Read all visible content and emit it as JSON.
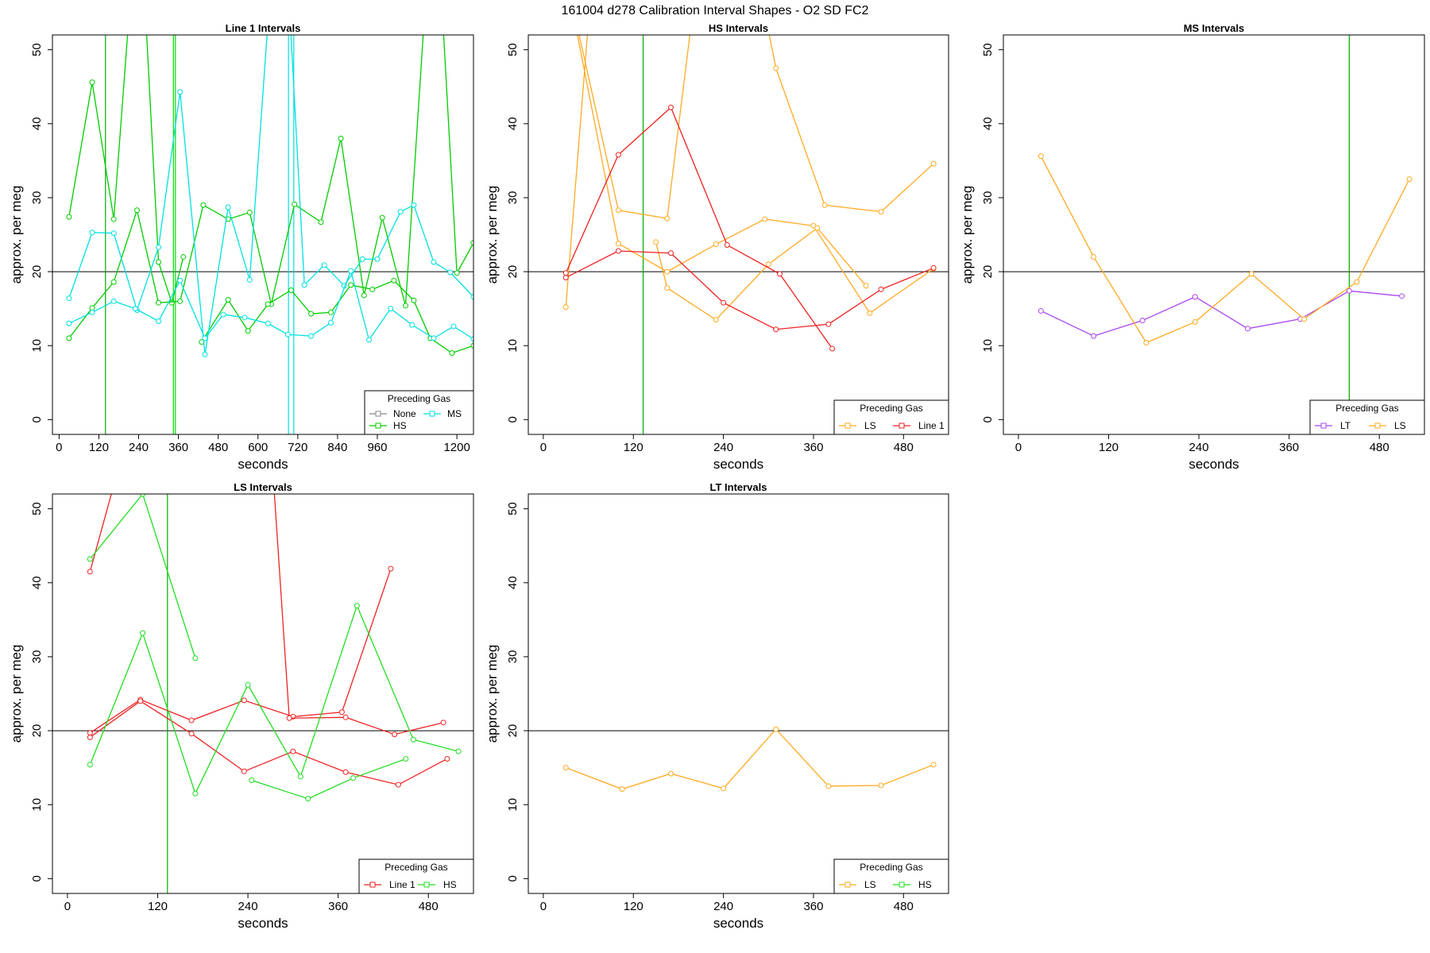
{
  "title": "161004   d278   Calibration Interval Shapes - O2 SD FC2",
  "chart_data": [
    {
      "type": "line",
      "title": "Line 1 Intervals",
      "xlabel": "seconds",
      "ylabel": "approx. per meg",
      "xlim": [
        -20,
        1250
      ],
      "ylim": [
        -2,
        52
      ],
      "xticks": [
        0,
        120,
        240,
        360,
        480,
        600,
        720,
        840,
        960,
        1200
      ],
      "yticks": [
        0,
        10,
        20,
        30,
        40,
        50
      ],
      "hline": 20,
      "vlines": [
        {
          "x": 140,
          "color": "#00aa00"
        },
        {
          "x": 345,
          "color": "#00dd00"
        },
        {
          "x": 351,
          "color": "#00dd00"
        },
        {
          "x": 692,
          "color": "#00e0e0"
        },
        {
          "x": 708,
          "color": "#00e0e0"
        }
      ],
      "legend": {
        "title": "Preceding Gas",
        "position": "bottom-right",
        "entries": [
          {
            "label": "None",
            "color": "#888888"
          },
          {
            "label": "MS",
            "color": "#00e0e0"
          },
          {
            "label": "HS",
            "color": "#00cc00"
          }
        ]
      },
      "series": [
        {
          "name": "HS",
          "color": "#00cc00",
          "x": [
            30,
            100,
            165,
            220,
            255,
            300,
            340,
            375
          ],
          "y": [
            27.4,
            45.6,
            27.1,
            60,
            60,
            21.3,
            15.8,
            22
          ]
        },
        {
          "name": "HS",
          "color": "#00cc00",
          "x": [
            30,
            100,
            165,
            235,
            300,
            365,
            435,
            510,
            575,
            640,
            710,
            790,
            850,
            920,
            975,
            1045,
            1110,
            1150,
            1200,
            1250
          ],
          "y": [
            11,
            15.1,
            18.6,
            28.3,
            15.8,
            16,
            29,
            27.1,
            28,
            15.6,
            29.1,
            26.7,
            38,
            16.8,
            27.3,
            15.4,
            60,
            60,
            19.8,
            23.9
          ]
        },
        {
          "name": "HS",
          "color": "#00cc00",
          "x": [
            430,
            510,
            570,
            630,
            700,
            760,
            820,
            880,
            945,
            1010,
            1070,
            1120,
            1185,
            1250
          ],
          "y": [
            10.5,
            16.2,
            12,
            15.6,
            17.5,
            14.3,
            14.5,
            18.2,
            17.6,
            18.8,
            16.1,
            11,
            9,
            10
          ]
        },
        {
          "name": "MS",
          "color": "#00e0e0",
          "x": [
            30,
            100,
            165,
            235,
            300,
            365,
            440,
            510,
            575,
            640,
            690,
            740,
            800,
            860,
            915,
            960,
            1030,
            1070,
            1130,
            1180,
            1250
          ],
          "y": [
            16.4,
            25.3,
            25.2,
            14.8,
            23.3,
            44.3,
            8.8,
            28.7,
            18.9,
            60,
            60,
            18.2,
            20.9,
            18.1,
            21.7,
            21.7,
            28.1,
            29,
            21.3,
            19.9,
            16.6
          ]
        },
        {
          "name": "MS",
          "color": "#00e0e0",
          "x": [
            30,
            100,
            165,
            230,
            300,
            365,
            440,
            495,
            560,
            630,
            690,
            760,
            820,
            880,
            935,
            1000,
            1065,
            1130,
            1190,
            1250
          ],
          "y": [
            13,
            14.5,
            16,
            15,
            13.3,
            18.8,
            11,
            14.2,
            13.8,
            13,
            11.5,
            11.3,
            13.1,
            20.1,
            10.8,
            15,
            12.8,
            11,
            12.6,
            10.9
          ]
        }
      ]
    },
    {
      "type": "line",
      "title": "HS Intervals",
      "xlabel": "seconds",
      "ylabel": "approx. per meg",
      "xlim": [
        -20,
        540
      ],
      "ylim": [
        -2,
        52
      ],
      "xticks": [
        0,
        120,
        240,
        360,
        480
      ],
      "yticks": [
        0,
        10,
        20,
        30,
        40,
        50
      ],
      "hline": 20,
      "vlines": [
        {
          "x": 133,
          "color": "#00aa00"
        }
      ],
      "legend": {
        "title": "Preceding Gas",
        "position": "bottom-right",
        "entries": [
          {
            "label": "LS",
            "color": "#ffaa22"
          },
          {
            "label": "Line 1",
            "color": "#ee2222"
          }
        ]
      },
      "series": [
        {
          "name": "LS",
          "color": "#ffaa22",
          "x": [
            30,
            65
          ],
          "y": [
            15.2,
            60
          ]
        },
        {
          "name": "LS",
          "color": "#ffaa22",
          "x": [
            30,
            100,
            165,
            205
          ],
          "y": [
            60,
            28.3,
            27.2,
            60
          ]
        },
        {
          "name": "LS",
          "color": "#ffaa22",
          "x": [
            30,
            100,
            165,
            230,
            295,
            360,
            435,
            520
          ],
          "y": [
            60,
            23.8,
            20,
            23.7,
            27.1,
            26.2,
            14.4,
            20.4
          ]
        },
        {
          "name": "LS",
          "color": "#ffaa22",
          "x": [
            150,
            165,
            230,
            300,
            365,
            430
          ],
          "y": [
            24,
            17.8,
            13.5,
            21,
            25.9,
            18.1
          ]
        },
        {
          "name": "LS",
          "color": "#ffaa22",
          "x": [
            285,
            310,
            375,
            450,
            520
          ],
          "y": [
            60,
            47.5,
            29,
            28.1,
            34.6
          ]
        },
        {
          "name": "Line 1",
          "color": "#ee2222",
          "x": [
            30,
            100,
            170,
            245,
            315,
            385
          ],
          "y": [
            19.8,
            35.8,
            42.2,
            23.6,
            19.7,
            9.6
          ]
        },
        {
          "name": "Line 1",
          "color": "#ee2222",
          "x": [
            30,
            100,
            170,
            240,
            310,
            380,
            450,
            520
          ],
          "y": [
            19.2,
            22.8,
            22.5,
            15.8,
            12.2,
            12.9,
            17.6,
            20.5
          ]
        }
      ]
    },
    {
      "type": "line",
      "title": "MS Intervals",
      "xlabel": "seconds",
      "ylabel": "approx. per meg",
      "xlim": [
        -20,
        540
      ],
      "ylim": [
        -2,
        52
      ],
      "xticks": [
        0,
        120,
        240,
        360,
        480
      ],
      "yticks": [
        0,
        10,
        20,
        30,
        40,
        50
      ],
      "hline": 20,
      "vlines": [
        {
          "x": 440,
          "color": "#00aa00"
        }
      ],
      "legend": {
        "title": "Preceding Gas",
        "position": "bottom-right",
        "entries": [
          {
            "label": "LT",
            "color": "#aa44ee"
          },
          {
            "label": "LS",
            "color": "#ffaa22"
          }
        ]
      },
      "series": [
        {
          "name": "LT",
          "color": "#aa44ee",
          "x": [
            30,
            100,
            165,
            235,
            305,
            375,
            440,
            510
          ],
          "y": [
            14.7,
            11.3,
            13.4,
            16.6,
            12.3,
            13.6,
            17.4,
            16.7
          ]
        },
        {
          "name": "LS",
          "color": "#ffaa22",
          "x": [
            30,
            100,
            170,
            235,
            310,
            380,
            450,
            520
          ],
          "y": [
            35.6,
            22,
            10.4,
            13.2,
            19.7,
            13.6,
            18.6,
            32.5
          ]
        }
      ]
    },
    {
      "type": "line",
      "title": "LS Intervals",
      "xlabel": "seconds",
      "ylabel": "approx. per meg",
      "xlim": [
        -20,
        540
      ],
      "ylim": [
        -2,
        52
      ],
      "xticks": [
        0,
        120,
        240,
        360,
        480
      ],
      "yticks": [
        0,
        10,
        20,
        30,
        40,
        50
      ],
      "hline": 20,
      "vlines": [
        {
          "x": 133,
          "color": "#00aa00"
        }
      ],
      "legend": {
        "title": "Preceding Gas",
        "position": "bottom-right",
        "entries": [
          {
            "label": "Line 1",
            "color": "#ee2222"
          },
          {
            "label": "HS",
            "color": "#22dd22"
          }
        ]
      },
      "series": [
        {
          "name": "Line 1",
          "color": "#ee2222",
          "x": [
            30,
            80
          ],
          "y": [
            41.5,
            60
          ]
        },
        {
          "name": "Line 1",
          "color": "#ee2222",
          "x": [
            30,
            97,
            165,
            235,
            300,
            365,
            430
          ],
          "y": [
            19.7,
            24.2,
            21.4,
            24.1,
            21.9,
            22.5,
            41.9
          ]
        },
        {
          "name": "Line 1",
          "color": "#ee2222",
          "x": [
            30,
            97,
            165,
            235,
            300,
            370,
            440,
            505
          ],
          "y": [
            19.1,
            24,
            19.6,
            14.5,
            17.2,
            14.4,
            12.7,
            16.2
          ]
        },
        {
          "name": "Line 1",
          "color": "#ee2222",
          "x": [
            270,
            295,
            370,
            435,
            500
          ],
          "y": [
            60,
            21.7,
            21.8,
            19.5,
            21.1
          ]
        },
        {
          "name": "HS",
          "color": "#22dd22",
          "x": [
            30,
            100,
            170
          ],
          "y": [
            43.2,
            52,
            29.8
          ]
        },
        {
          "name": "HS",
          "color": "#22dd22",
          "x": [
            30,
            100,
            170,
            240,
            310,
            385,
            460,
            520
          ],
          "y": [
            15.4,
            33.2,
            11.5,
            26.2,
            13.8,
            36.9,
            18.8,
            17.2
          ]
        },
        {
          "name": "HS",
          "color": "#22dd22",
          "x": [
            245,
            320,
            380,
            450
          ],
          "y": [
            13.3,
            10.8,
            13.6,
            16.2
          ]
        }
      ]
    },
    {
      "type": "line",
      "title": "LT Intervals",
      "xlabel": "seconds",
      "ylabel": "approx. per meg",
      "xlim": [
        -20,
        540
      ],
      "ylim": [
        -2,
        52
      ],
      "xticks": [
        0,
        120,
        240,
        360,
        480
      ],
      "yticks": [
        0,
        10,
        20,
        30,
        40,
        50
      ],
      "hline": 20,
      "vlines": [],
      "legend": {
        "title": "Preceding Gas",
        "position": "bottom-right",
        "entries": [
          {
            "label": "LS",
            "color": "#ffaa22"
          },
          {
            "label": "HS",
            "color": "#22dd22"
          }
        ]
      },
      "series": [
        {
          "name": "LS",
          "color": "#ffaa22",
          "x": [
            30,
            105,
            170,
            240,
            310,
            380,
            450,
            520
          ],
          "y": [
            15,
            12.1,
            14.2,
            12.2,
            20.2,
            12.5,
            12.6,
            15.4
          ]
        }
      ]
    }
  ]
}
